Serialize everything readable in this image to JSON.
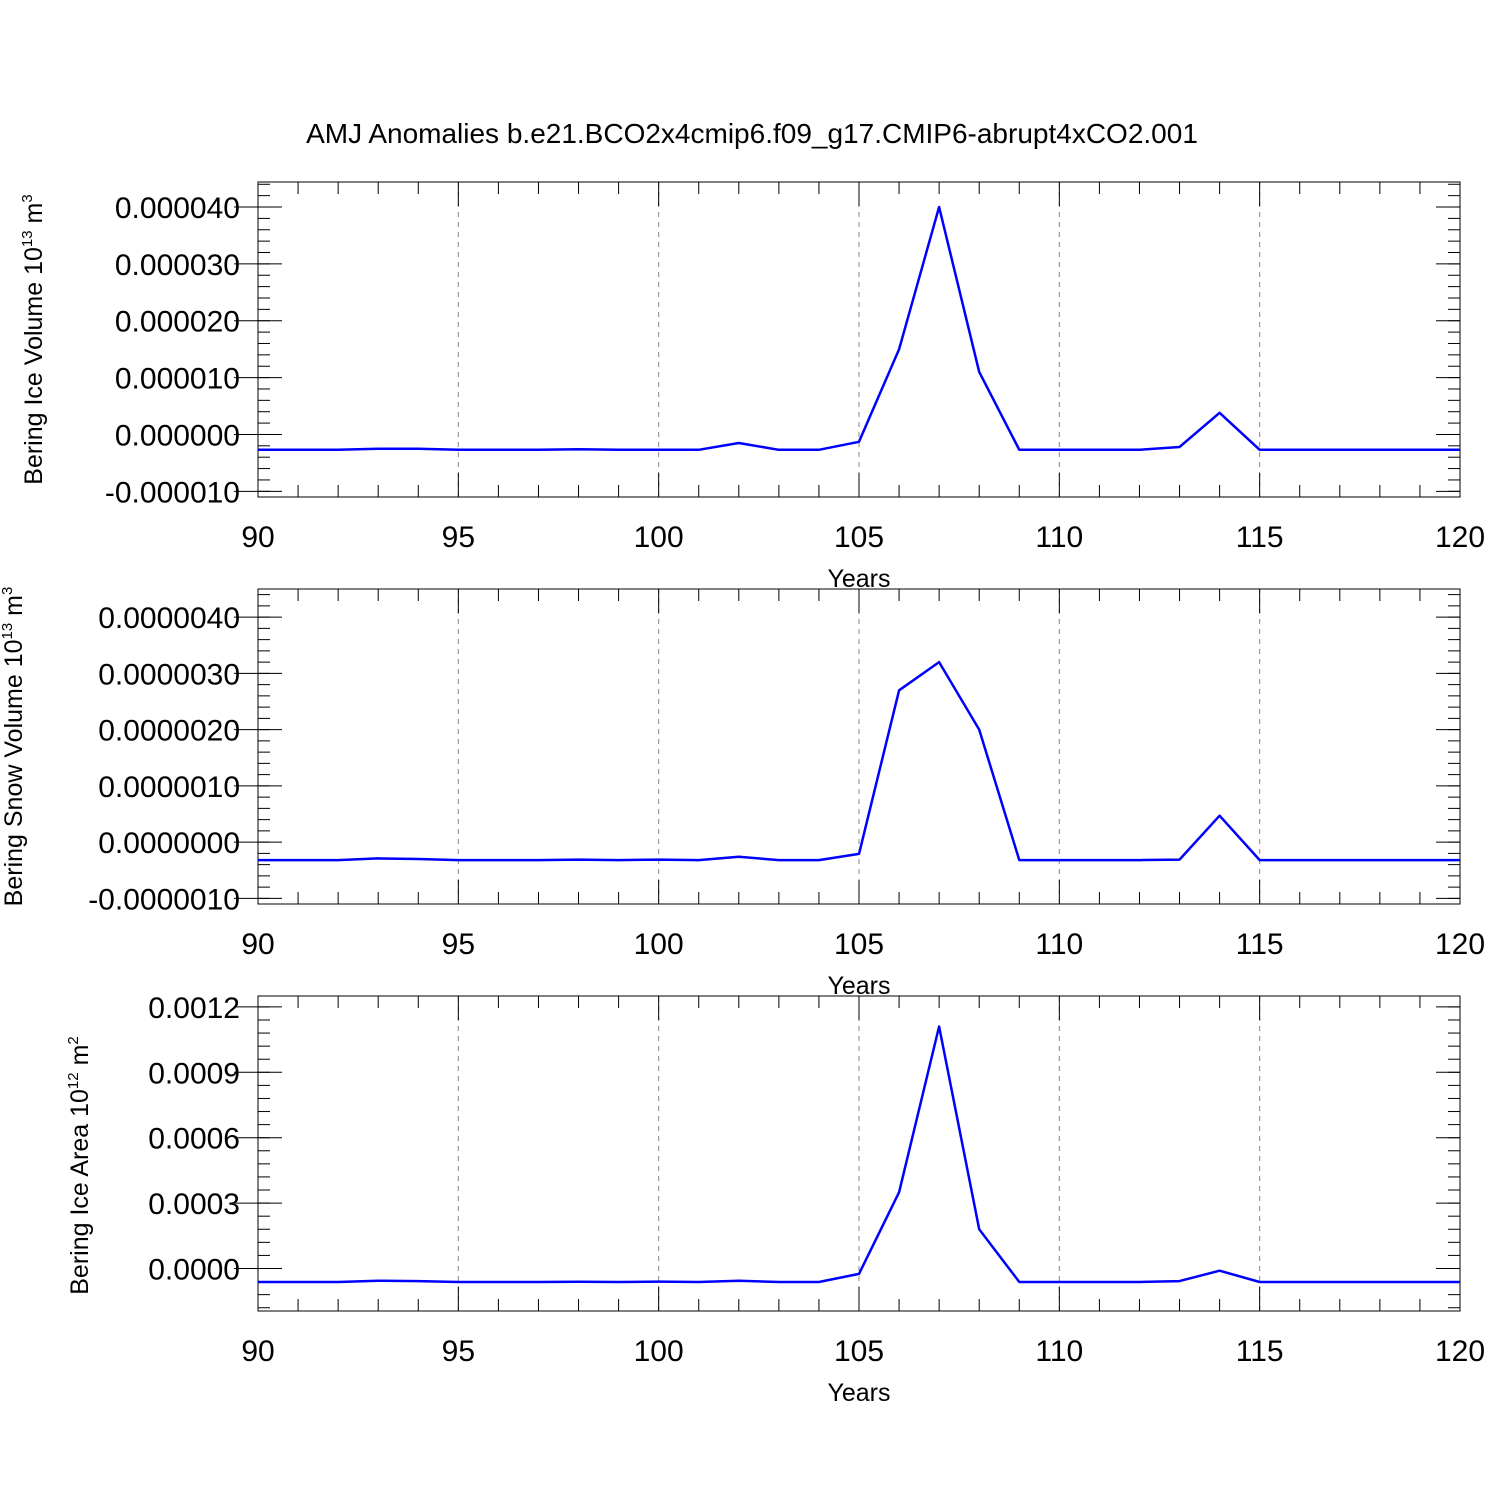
{
  "title": "AMJ Anomalies b.e21.BCO2x4cmip6.f09_g17.CMIP6-abrupt4xCO2.001",
  "colors": {
    "line": "#0000ff",
    "grid": "#888888",
    "axis": "#000000"
  },
  "chart_data": [
    {
      "type": "line",
      "ylabel": {
        "text": "Bering Ice Volume 10",
        "exp": "13",
        "unit": " m",
        "unit_exp": "3"
      },
      "xlabel": "Years",
      "xlim": [
        90,
        120
      ],
      "ylim": [
        -1.1e-05,
        4.44e-05
      ],
      "yticks": [
        -1e-05,
        0.0,
        1e-05,
        2e-05,
        3e-05,
        4e-05
      ],
      "ytick_labels": [
        "-0.000010",
        "0.000000",
        "0.000010",
        "0.000020",
        "0.000030",
        "0.000040"
      ],
      "xticks": [
        90,
        95,
        100,
        105,
        110,
        115,
        120
      ],
      "xtick_labels": [
        "90",
        "95",
        "100",
        "105",
        "110",
        "115",
        "120"
      ],
      "grid": "vertical dashed at major x ticks",
      "series": [
        {
          "x": [
            90,
            91,
            92,
            93,
            94,
            95,
            96,
            97,
            98,
            99,
            100,
            101,
            102,
            103,
            104,
            105,
            106,
            107,
            108,
            109,
            110,
            111,
            112,
            113,
            114,
            115,
            116,
            117,
            118,
            119,
            120
          ],
          "values": [
            -2.7e-06,
            -2.7e-06,
            -2.7e-06,
            -2.5e-06,
            -2.5e-06,
            -2.7e-06,
            -2.7e-06,
            -2.7e-06,
            -2.6e-06,
            -2.7e-06,
            -2.7e-06,
            -2.7e-06,
            -1.5e-06,
            -2.7e-06,
            -2.7e-06,
            -1.3e-06,
            1.5e-05,
            4e-05,
            1.1e-05,
            -2.7e-06,
            -2.7e-06,
            -2.7e-06,
            -2.7e-06,
            -2.2e-06,
            3.8e-06,
            -2.7e-06,
            -2.7e-06,
            -2.7e-06,
            -2.7e-06,
            -2.7e-06,
            -2.7e-06
          ]
        }
      ]
    },
    {
      "type": "line",
      "ylabel": {
        "text": "Bering Snow Volume 10",
        "exp": "13",
        "unit": " m",
        "unit_exp": "3"
      },
      "xlabel": "Years",
      "xlim": [
        90,
        120
      ],
      "ylim": [
        -1.1e-06,
        4.5e-06
      ],
      "yticks": [
        -1e-06,
        0.0,
        1e-06,
        2e-06,
        3e-06,
        4e-06
      ],
      "ytick_labels": [
        "-0.0000010",
        "0.0000000",
        "0.0000010",
        "0.0000020",
        "0.0000030",
        "0.0000040"
      ],
      "xticks": [
        90,
        95,
        100,
        105,
        110,
        115,
        120
      ],
      "xtick_labels": [
        "90",
        "95",
        "100",
        "105",
        "110",
        "115",
        "120"
      ],
      "grid": "vertical dashed at major x ticks",
      "series": [
        {
          "x": [
            90,
            91,
            92,
            93,
            94,
            95,
            96,
            97,
            98,
            99,
            100,
            101,
            102,
            103,
            104,
            105,
            106,
            107,
            108,
            109,
            110,
            111,
            112,
            113,
            114,
            115,
            116,
            117,
            118,
            119,
            120
          ],
          "values": [
            -3.2e-07,
            -3.2e-07,
            -3.2e-07,
            -2.9e-07,
            -3e-07,
            -3.2e-07,
            -3.2e-07,
            -3.2e-07,
            -3.1e-07,
            -3.2e-07,
            -3.1e-07,
            -3.2e-07,
            -2.6e-07,
            -3.2e-07,
            -3.2e-07,
            -2.1e-07,
            2.7e-06,
            3.2e-06,
            2e-06,
            -3.2e-07,
            -3.2e-07,
            -3.2e-07,
            -3.2e-07,
            -3.1e-07,
            4.7e-07,
            -3.2e-07,
            -3.2e-07,
            -3.2e-07,
            -3.2e-07,
            -3.2e-07,
            -3.2e-07
          ]
        }
      ]
    },
    {
      "type": "line",
      "ylabel": {
        "text": "Bering Ice Area 10",
        "exp": "12",
        "unit": " m",
        "unit_exp": "2"
      },
      "xlabel": "Years",
      "xlim": [
        90,
        120
      ],
      "ylim": [
        -0.000195,
        0.00125
      ],
      "yticks": [
        0.0,
        0.0003,
        0.0006,
        0.0009,
        0.0012
      ],
      "ytick_labels": [
        "0.0000",
        "0.0003",
        "0.0006",
        "0.0009",
        "0.0012"
      ],
      "xticks": [
        90,
        95,
        100,
        105,
        110,
        115,
        120
      ],
      "xtick_labels": [
        "90",
        "95",
        "100",
        "105",
        "110",
        "115",
        "120"
      ],
      "grid": "vertical dashed at major x ticks",
      "series": [
        {
          "x": [
            90,
            91,
            92,
            93,
            94,
            95,
            96,
            97,
            98,
            99,
            100,
            101,
            102,
            103,
            104,
            105,
            106,
            107,
            108,
            109,
            110,
            111,
            112,
            113,
            114,
            115,
            116,
            117,
            118,
            119,
            120
          ],
          "values": [
            -6.2e-05,
            -6.2e-05,
            -6.2e-05,
            -5.6e-05,
            -5.8e-05,
            -6.2e-05,
            -6.2e-05,
            -6.2e-05,
            -6.1e-05,
            -6.2e-05,
            -6e-05,
            -6.2e-05,
            -5.6e-05,
            -6.2e-05,
            -6.2e-05,
            -2.5e-05,
            0.00035,
            0.00111,
            0.00018,
            -6.2e-05,
            -6.2e-05,
            -6.2e-05,
            -6.2e-05,
            -5.8e-05,
            -1e-05,
            -6.2e-05,
            -6.2e-05,
            -6.2e-05,
            -6.2e-05,
            -6.2e-05,
            -6.2e-05
          ]
        }
      ]
    }
  ]
}
